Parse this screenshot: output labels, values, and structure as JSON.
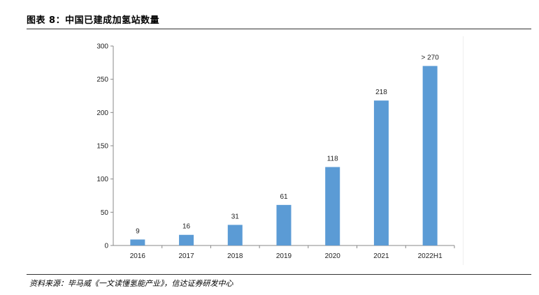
{
  "figure": {
    "title": "图表 8：中国已建成加氢站数量",
    "source": "资料来源：毕马威《一文读懂氢能产业》，信达证券研发中心"
  },
  "chart_data": {
    "type": "bar",
    "categories": [
      "2016",
      "2017",
      "2018",
      "2019",
      "2020",
      "2021",
      "2022H1"
    ],
    "values": [
      9,
      16,
      31,
      61,
      118,
      218,
      270
    ],
    "data_labels": [
      "9",
      "16",
      "31",
      "61",
      "118",
      "218",
      "> 270"
    ],
    "ylim": [
      0,
      300
    ],
    "yticks": [
      0,
      50,
      100,
      150,
      200,
      250,
      300
    ],
    "bar_color": "#5b9bd5",
    "grid": false
  }
}
